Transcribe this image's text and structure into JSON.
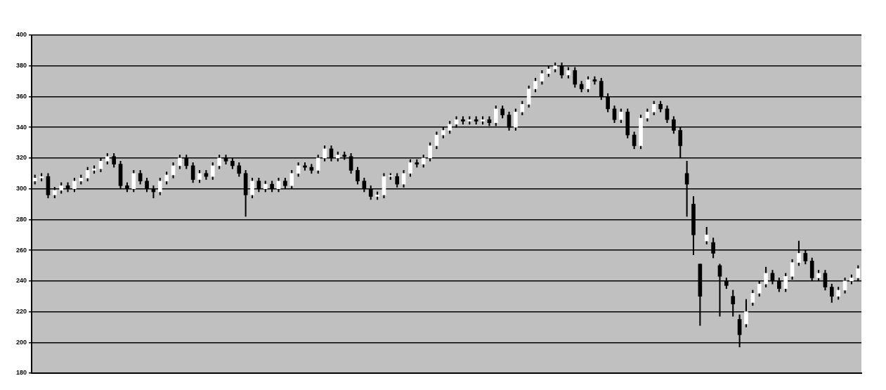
{
  "chart_data": {
    "type": "candlestick",
    "grid": "y",
    "ylim": [
      180,
      400
    ],
    "yticks": [
      180,
      200,
      220,
      240,
      260,
      280,
      300,
      320,
      340,
      360,
      380,
      400
    ],
    "categories": [
      null,
      null,
      null,
      null,
      null,
      null,
      null,
      null,
      null,
      null,
      null,
      null,
      null,
      null,
      null,
      null,
      null,
      null,
      null,
      null,
      null,
      null,
      null,
      null,
      null,
      null,
      null,
      null,
      null,
      null,
      null,
      null,
      null,
      null,
      null,
      null,
      null,
      null,
      null,
      null,
      null,
      null,
      null,
      null,
      null,
      null,
      null,
      null,
      null,
      null,
      null,
      null,
      null,
      null,
      null,
      null,
      null,
      null,
      null,
      null,
      null,
      null,
      null,
      null,
      null,
      null,
      null,
      null,
      null,
      null,
      null,
      null,
      null,
      null,
      null,
      null,
      null,
      null,
      null,
      null,
      null,
      null,
      null,
      null,
      null,
      null,
      null,
      null,
      null,
      null,
      null,
      null,
      null,
      null,
      null,
      null,
      null,
      null,
      null,
      null,
      null,
      null,
      null,
      null,
      null,
      null,
      null,
      null,
      null,
      null,
      null,
      null,
      null,
      null,
      null,
      null,
      null,
      null,
      null,
      null,
      null,
      null,
      null,
      null,
      null,
      null
    ],
    "ohlc": [
      [
        305,
        309,
        303,
        307
      ],
      [
        307,
        310,
        305,
        308
      ],
      [
        308,
        310,
        294,
        296
      ],
      [
        296,
        301,
        294,
        299
      ],
      [
        299,
        304,
        297,
        302
      ],
      [
        302,
        304,
        298,
        300
      ],
      [
        300,
        307,
        298,
        305
      ],
      [
        305,
        309,
        303,
        307
      ],
      [
        307,
        314,
        305,
        312
      ],
      [
        312,
        315,
        310,
        313
      ],
      [
        313,
        320,
        311,
        318
      ],
      [
        318,
        323,
        316,
        321
      ],
      [
        321,
        323,
        314,
        316
      ],
      [
        316,
        318,
        300,
        302
      ],
      [
        302,
        304,
        298,
        300
      ],
      [
        300,
        312,
        298,
        310
      ],
      [
        310,
        312,
        303,
        305
      ],
      [
        305,
        307,
        298,
        300
      ],
      [
        300,
        302,
        294,
        298
      ],
      [
        298,
        307,
        296,
        305
      ],
      [
        305,
        311,
        303,
        309
      ],
      [
        309,
        317,
        307,
        315
      ],
      [
        315,
        322,
        313,
        320
      ],
      [
        320,
        322,
        313,
        315
      ],
      [
        315,
        317,
        304,
        306
      ],
      [
        306,
        312,
        304,
        310
      ],
      [
        310,
        312,
        306,
        308
      ],
      [
        308,
        317,
        306,
        315
      ],
      [
        315,
        322,
        313,
        320
      ],
      [
        320,
        322,
        316,
        318
      ],
      [
        318,
        320,
        313,
        315
      ],
      [
        315,
        317,
        308,
        310
      ],
      [
        310,
        312,
        282,
        296
      ],
      [
        296,
        307,
        294,
        305
      ],
      [
        305,
        307,
        298,
        300
      ],
      [
        300,
        305,
        298,
        303
      ],
      [
        303,
        305,
        298,
        300
      ],
      [
        300,
        307,
        298,
        305
      ],
      [
        305,
        307,
        300,
        302
      ],
      [
        302,
        312,
        300,
        310
      ],
      [
        310,
        317,
        308,
        315
      ],
      [
        315,
        317,
        312,
        314
      ],
      [
        314,
        316,
        310,
        312
      ],
      [
        312,
        322,
        310,
        320
      ],
      [
        320,
        328,
        318,
        326
      ],
      [
        326,
        328,
        318,
        320
      ],
      [
        320,
        324,
        318,
        322
      ],
      [
        322,
        324,
        319,
        321
      ],
      [
        321,
        323,
        310,
        312
      ],
      [
        312,
        314,
        303,
        305
      ],
      [
        305,
        307,
        298,
        300
      ],
      [
        300,
        302,
        293,
        295
      ],
      [
        295,
        298,
        293,
        296
      ],
      [
        296,
        310,
        294,
        308
      ],
      [
        308,
        310,
        306,
        308
      ],
      [
        308,
        310,
        301,
        303
      ],
      [
        303,
        312,
        301,
        310
      ],
      [
        310,
        319,
        308,
        317
      ],
      [
        317,
        319,
        314,
        316
      ],
      [
        316,
        322,
        314,
        320
      ],
      [
        320,
        330,
        318,
        328
      ],
      [
        328,
        337,
        326,
        335
      ],
      [
        335,
        340,
        333,
        338
      ],
      [
        338,
        344,
        336,
        342
      ],
      [
        342,
        347,
        340,
        345
      ],
      [
        345,
        347,
        342,
        344
      ],
      [
        344,
        347,
        342,
        345
      ],
      [
        345,
        347,
        342,
        344
      ],
      [
        344,
        347,
        342,
        345
      ],
      [
        345,
        347,
        341,
        343
      ],
      [
        343,
        354,
        341,
        352
      ],
      [
        352,
        354,
        346,
        348
      ],
      [
        348,
        350,
        338,
        340
      ],
      [
        340,
        352,
        338,
        350
      ],
      [
        350,
        357,
        348,
        355
      ],
      [
        355,
        367,
        353,
        365
      ],
      [
        365,
        372,
        363,
        370
      ],
      [
        370,
        377,
        368,
        375
      ],
      [
        375,
        380,
        373,
        378
      ],
      [
        378,
        382,
        376,
        380
      ],
      [
        380,
        382,
        372,
        374
      ],
      [
        374,
        379,
        372,
        377
      ],
      [
        377,
        379,
        366,
        368
      ],
      [
        368,
        370,
        363,
        365
      ],
      [
        365,
        373,
        363,
        371
      ],
      [
        371,
        373,
        368,
        370
      ],
      [
        370,
        372,
        358,
        360
      ],
      [
        360,
        362,
        350,
        352
      ],
      [
        352,
        354,
        343,
        345
      ],
      [
        345,
        352,
        343,
        350
      ],
      [
        350,
        352,
        333,
        335
      ],
      [
        335,
        337,
        326,
        328
      ],
      [
        328,
        348,
        326,
        346
      ],
      [
        346,
        352,
        344,
        350
      ],
      [
        350,
        357,
        348,
        355
      ],
      [
        355,
        357,
        350,
        352
      ],
      [
        352,
        354,
        343,
        345
      ],
      [
        345,
        347,
        336,
        338
      ],
      [
        338,
        340,
        320,
        328
      ],
      [
        310,
        318,
        282,
        303
      ],
      [
        290,
        295,
        257,
        270
      ],
      [
        251,
        251,
        211,
        230
      ],
      [
        266,
        275,
        264,
        270
      ],
      [
        265,
        268,
        255,
        258
      ],
      [
        250,
        251,
        217,
        243
      ],
      [
        240,
        242,
        235,
        237
      ],
      [
        230,
        234,
        217,
        225
      ],
      [
        215,
        218,
        197,
        205
      ],
      [
        212,
        228,
        210,
        220
      ],
      [
        226,
        234,
        224,
        232
      ],
      [
        232,
        240,
        230,
        238
      ],
      [
        238,
        249,
        236,
        245
      ],
      [
        245,
        247,
        238,
        240
      ],
      [
        240,
        242,
        233,
        235
      ],
      [
        235,
        245,
        233,
        243
      ],
      [
        243,
        254,
        241,
        252
      ],
      [
        252,
        266,
        250,
        258
      ],
      [
        258,
        260,
        251,
        253
      ],
      [
        253,
        255,
        240,
        242
      ],
      [
        242,
        247,
        240,
        245
      ],
      [
        245,
        247,
        234,
        236
      ],
      [
        236,
        238,
        226,
        230
      ],
      [
        230,
        236,
        228,
        234
      ],
      [
        234,
        242,
        232,
        240
      ],
      [
        240,
        244,
        238,
        242
      ],
      [
        242,
        250,
        240,
        248
      ]
    ]
  }
}
